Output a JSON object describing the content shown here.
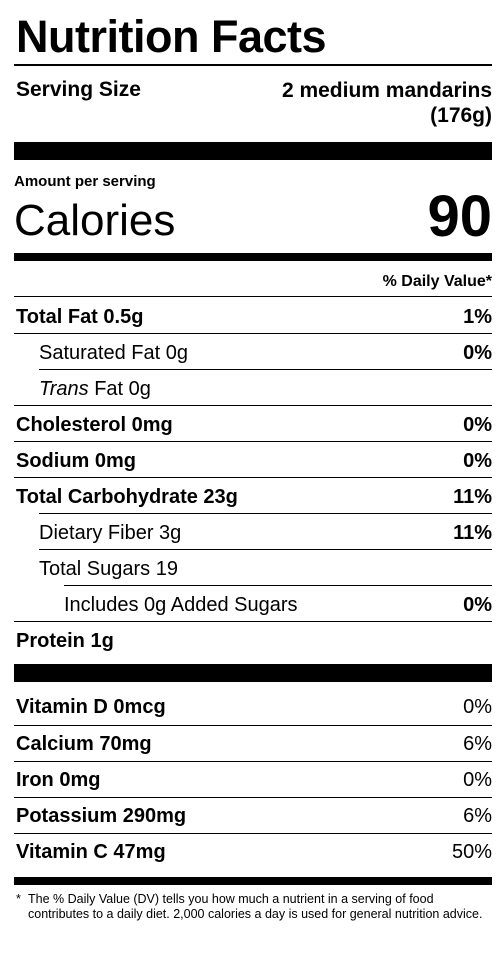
{
  "title": "Nutrition Facts",
  "serving": {
    "label": "Serving Size",
    "value_line1": "2 medium mandarins",
    "value_line2": "(176g)"
  },
  "amount_per_serving": "Amount per serving",
  "calories": {
    "label": "Calories",
    "value": "90"
  },
  "dv_header": "% Daily Value*",
  "nutrients": [
    {
      "name": "Total Fat 0.5g",
      "dv": "1%"
    },
    {
      "name": "Saturated Fat 0g",
      "dv": "0%"
    },
    {
      "prefix": "Trans",
      "name": " Fat 0g",
      "dv": ""
    },
    {
      "name": "Cholesterol 0mg",
      "dv": "0%"
    },
    {
      "name": "Sodium 0mg",
      "dv": "0%"
    },
    {
      "name": "Total Carbohydrate 23g",
      "dv": "11%"
    },
    {
      "name": "Dietary Fiber 3g",
      "dv": "11%"
    },
    {
      "name": "Total Sugars 19",
      "dv": ""
    },
    {
      "name": "Includes 0g Added Sugars",
      "dv": "0%"
    },
    {
      "name": "Protein 1g",
      "dv": ""
    }
  ],
  "vitamins": [
    {
      "name": "Vitamin D 0mcg",
      "dv": "0%"
    },
    {
      "name": "Calcium 70mg",
      "dv": "6%"
    },
    {
      "name": "Iron 0mg",
      "dv": "0%"
    },
    {
      "name": "Potassium 290mg",
      "dv": "6%"
    },
    {
      "name": "Vitamin C 47mg",
      "dv": "50%"
    }
  ],
  "footnote": {
    "star": "*",
    "text": "The % Daily Value (DV) tells you how much a nutrient in a serving of food contributes to a daily diet. 2,000 calories a day is used for general nutrition advice."
  }
}
